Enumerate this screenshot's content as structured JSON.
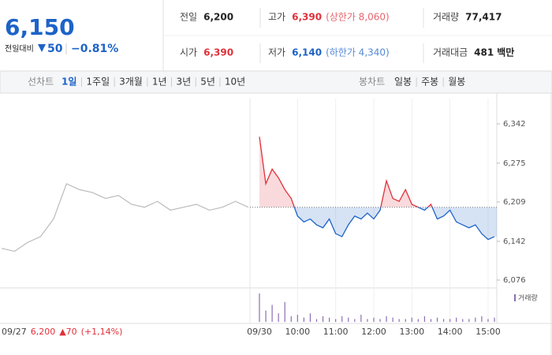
{
  "quote": {
    "price": "6,150",
    "change_caption": "전일대비",
    "change": "50",
    "change_rate": "−0.81%"
  },
  "stats": [
    {
      "label": "전일",
      "value": "6,200"
    },
    {
      "label": "고가",
      "value": "6,390",
      "note": "(상한가 8,060)",
      "color": "#e0313b"
    },
    {
      "label": "거래량",
      "value": "77,417"
    },
    {
      "label": "시가",
      "value": "6,390",
      "color": "#e0313b"
    },
    {
      "label": "저가",
      "value": "6,140",
      "note": "(하한가 4,340)",
      "color": "#1d63c8"
    },
    {
      "label": "거래대금",
      "value": "481",
      "unit": "백만"
    }
  ],
  "line_tabs": {
    "label": "선차트",
    "items": [
      "1일",
      "1주일",
      "3개월",
      "1년",
      "3년",
      "5년",
      "10년"
    ],
    "selected": 0
  },
  "candle_tabs": {
    "label": "봉차트",
    "items": [
      "일봉",
      "주봉",
      "월봉"
    ]
  },
  "chart_data": {
    "type": "line",
    "ylim": [
      6076,
      6342
    ],
    "yticks": [
      {
        "value": 6342,
        "label": "6,342"
      },
      {
        "value": 6275,
        "label": "6,275"
      },
      {
        "value": 6209,
        "label": "6,209"
      },
      {
        "value": 6142,
        "label": "6,142"
      },
      {
        "value": 6076,
        "label": "6,076"
      }
    ],
    "xlim": [
      0,
      370
    ],
    "xticks": [
      {
        "value": 0,
        "label": "09/30"
      },
      {
        "value": 60,
        "label": "10:00"
      },
      {
        "value": 120,
        "label": "11:00"
      },
      {
        "value": 180,
        "label": "12:00"
      },
      {
        "value": 240,
        "label": "13:00"
      },
      {
        "value": 300,
        "label": "14:00"
      },
      {
        "value": 360,
        "label": "15:00"
      }
    ],
    "grid": true,
    "baseline": 6200,
    "up_color": "#e0313b",
    "down_color": "#1d63c8",
    "prev_day": {
      "date": "09/27",
      "close": "6,200",
      "change": "▲70",
      "rate": "(+1,14%)",
      "color": "#bbbbbb",
      "values": [
        6130,
        6125,
        6140,
        6150,
        6180,
        6240,
        6230,
        6225,
        6215,
        6220,
        6205,
        6200,
        6210,
        6195,
        6200,
        6205,
        6195,
        6200,
        6210,
        6200
      ]
    },
    "today": {
      "x": [
        0,
        10,
        20,
        30,
        40,
        50,
        60,
        70,
        80,
        90,
        100,
        110,
        120,
        130,
        140,
        150,
        160,
        170,
        180,
        190,
        200,
        210,
        220,
        230,
        240,
        250,
        260,
        270,
        280,
        290,
        300,
        310,
        320,
        330,
        340,
        350,
        360,
        370
      ],
      "values": [
        6320,
        6240,
        6265,
        6250,
        6230,
        6215,
        6185,
        6175,
        6180,
        6170,
        6165,
        6180,
        6155,
        6150,
        6170,
        6185,
        6180,
        6190,
        6180,
        6195,
        6245,
        6215,
        6210,
        6230,
        6205,
        6200,
        6195,
        6205,
        6180,
        6185,
        6195,
        6175,
        6170,
        6165,
        6170,
        6155,
        6145,
        6150
      ]
    },
    "volume": {
      "name": "거래량",
      "color": "#8a6fb5",
      "vlim": [
        0,
        100
      ],
      "values": [
        100,
        40,
        60,
        30,
        70,
        20,
        25,
        15,
        30,
        10,
        20,
        15,
        10,
        20,
        15,
        10,
        25,
        10,
        15,
        10,
        20,
        15,
        10,
        10,
        15,
        10,
        20,
        10,
        15,
        10,
        10,
        15,
        10,
        10,
        15,
        20,
        10,
        15
      ]
    }
  }
}
